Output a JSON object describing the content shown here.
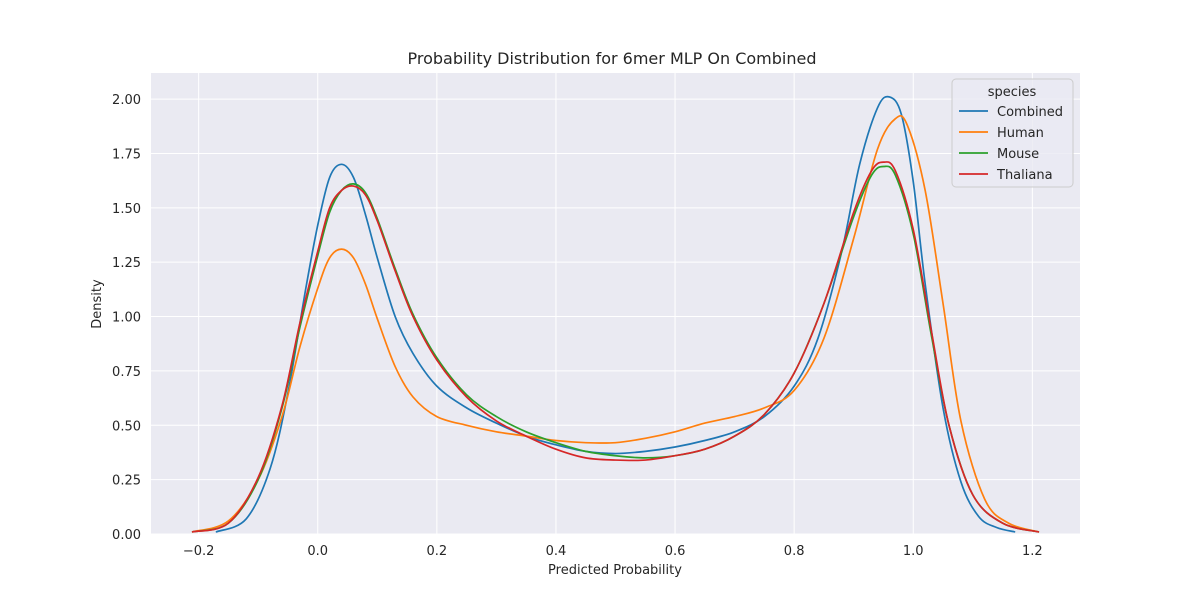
{
  "chart_data": {
    "type": "line",
    "title": "Probability Distribution for 6mer MLP On Combined",
    "xlabel": "Predicted Probability",
    "ylabel": "Density",
    "xlim": [
      -0.28,
      1.28
    ],
    "ylim": [
      0,
      2.12
    ],
    "xticks": [
      -0.2,
      0.0,
      0.2,
      0.4,
      0.6,
      0.8,
      1.0,
      1.2
    ],
    "xtick_labels": [
      "−0.2",
      "0.0",
      "0.2",
      "0.4",
      "0.6",
      "0.8",
      "1.0",
      "1.2"
    ],
    "yticks": [
      0.0,
      0.25,
      0.5,
      0.75,
      1.0,
      1.25,
      1.5,
      1.75,
      2.0
    ],
    "ytick_labels": [
      "0.00",
      "0.25",
      "0.50",
      "0.75",
      "1.00",
      "1.25",
      "1.50",
      "1.75",
      "2.00"
    ],
    "grid": true,
    "background": "#eaeaf2",
    "legend": {
      "title": "species",
      "placement": "top-right"
    },
    "series": [
      {
        "name": "Combined",
        "color": "#1f77b4",
        "x": [
          -0.17,
          -0.12,
          -0.08,
          -0.05,
          -0.02,
          0.0,
          0.02,
          0.04,
          0.06,
          0.08,
          0.1,
          0.13,
          0.16,
          0.2,
          0.25,
          0.3,
          0.35,
          0.4,
          0.45,
          0.5,
          0.55,
          0.6,
          0.65,
          0.7,
          0.75,
          0.8,
          0.84,
          0.88,
          0.91,
          0.94,
          0.96,
          0.98,
          1.0,
          1.02,
          1.05,
          1.08,
          1.11,
          1.14,
          1.17
        ],
        "y": [
          0.01,
          0.07,
          0.3,
          0.65,
          1.13,
          1.42,
          1.64,
          1.7,
          1.64,
          1.47,
          1.27,
          1.0,
          0.83,
          0.68,
          0.58,
          0.51,
          0.45,
          0.41,
          0.38,
          0.37,
          0.38,
          0.4,
          0.43,
          0.47,
          0.54,
          0.68,
          0.9,
          1.3,
          1.7,
          1.96,
          2.01,
          1.93,
          1.62,
          1.15,
          0.58,
          0.24,
          0.08,
          0.03,
          0.01
        ]
      },
      {
        "name": "Human",
        "color": "#ff7f0e",
        "x": [
          -0.21,
          -0.15,
          -0.1,
          -0.06,
          -0.03,
          0.0,
          0.02,
          0.04,
          0.06,
          0.08,
          0.1,
          0.13,
          0.16,
          0.2,
          0.25,
          0.3,
          0.35,
          0.4,
          0.45,
          0.5,
          0.55,
          0.6,
          0.65,
          0.7,
          0.75,
          0.8,
          0.85,
          0.9,
          0.94,
          0.97,
          0.99,
          1.02,
          1.05,
          1.08,
          1.12,
          1.16,
          1.21
        ],
        "y": [
          0.01,
          0.06,
          0.25,
          0.54,
          0.86,
          1.13,
          1.27,
          1.31,
          1.27,
          1.15,
          0.99,
          0.77,
          0.63,
          0.54,
          0.5,
          0.47,
          0.45,
          0.43,
          0.42,
          0.42,
          0.44,
          0.47,
          0.51,
          0.54,
          0.58,
          0.66,
          0.9,
          1.36,
          1.77,
          1.91,
          1.88,
          1.58,
          1.06,
          0.52,
          0.16,
          0.05,
          0.01
        ]
      },
      {
        "name": "Mouse",
        "color": "#2ca02c",
        "x": [
          -0.21,
          -0.15,
          -0.1,
          -0.06,
          -0.03,
          0.0,
          0.02,
          0.04,
          0.06,
          0.08,
          0.1,
          0.13,
          0.16,
          0.2,
          0.25,
          0.3,
          0.35,
          0.4,
          0.45,
          0.5,
          0.55,
          0.6,
          0.65,
          0.7,
          0.75,
          0.8,
          0.85,
          0.9,
          0.93,
          0.95,
          0.97,
          1.0,
          1.03,
          1.06,
          1.1,
          1.15,
          1.21
        ],
        "y": [
          0.01,
          0.05,
          0.25,
          0.58,
          0.95,
          1.28,
          1.48,
          1.58,
          1.61,
          1.57,
          1.45,
          1.22,
          1.01,
          0.81,
          0.64,
          0.54,
          0.47,
          0.42,
          0.38,
          0.36,
          0.35,
          0.36,
          0.39,
          0.45,
          0.55,
          0.74,
          1.06,
          1.46,
          1.65,
          1.69,
          1.65,
          1.38,
          0.92,
          0.5,
          0.18,
          0.05,
          0.01
        ]
      },
      {
        "name": "Thaliana",
        "color": "#d62728",
        "x": [
          -0.21,
          -0.15,
          -0.1,
          -0.06,
          -0.03,
          0.0,
          0.02,
          0.04,
          0.06,
          0.08,
          0.1,
          0.13,
          0.16,
          0.2,
          0.25,
          0.3,
          0.35,
          0.4,
          0.45,
          0.5,
          0.55,
          0.6,
          0.65,
          0.7,
          0.75,
          0.8,
          0.85,
          0.9,
          0.93,
          0.95,
          0.97,
          1.0,
          1.03,
          1.06,
          1.1,
          1.15,
          1.21
        ],
        "y": [
          0.01,
          0.05,
          0.26,
          0.59,
          0.97,
          1.3,
          1.5,
          1.58,
          1.6,
          1.56,
          1.44,
          1.21,
          1.0,
          0.8,
          0.63,
          0.52,
          0.45,
          0.39,
          0.35,
          0.34,
          0.34,
          0.36,
          0.39,
          0.45,
          0.55,
          0.74,
          1.06,
          1.48,
          1.67,
          1.71,
          1.67,
          1.4,
          0.94,
          0.5,
          0.18,
          0.05,
          0.01
        ]
      }
    ]
  }
}
